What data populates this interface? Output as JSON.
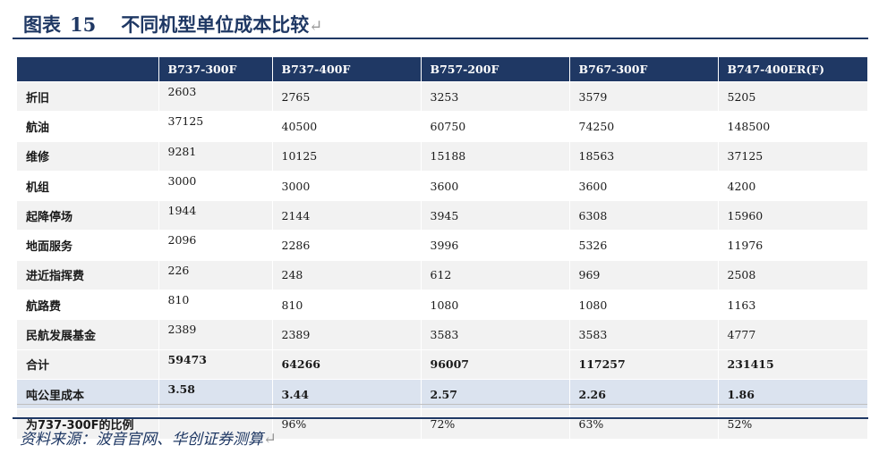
{
  "title": {
    "label": "图表",
    "number": "15",
    "text": "不同机型单位成本比较",
    "return_mark": "↵"
  },
  "table": {
    "columns": [
      "",
      "B737-300F",
      "B737-400F",
      "B757-200F",
      "B767-300F",
      "B747-400ER(F)"
    ],
    "rows": [
      {
        "label": "折旧",
        "values": [
          "2603",
          "2765",
          "3253",
          "3579",
          "5205"
        ]
      },
      {
        "label": "航油",
        "values": [
          "37125",
          "40500",
          "60750",
          "74250",
          "148500"
        ]
      },
      {
        "label": "维修",
        "values": [
          "9281",
          "10125",
          "15188",
          "18563",
          "37125"
        ]
      },
      {
        "label": "机组",
        "values": [
          "3000",
          "3000",
          "3600",
          "3600",
          "4200"
        ]
      },
      {
        "label": "起降停场",
        "values": [
          "1944",
          "2144",
          "3945",
          "6308",
          "15960"
        ]
      },
      {
        "label": "地面服务",
        "values": [
          "2096",
          "2286",
          "3996",
          "5326",
          "11976"
        ]
      },
      {
        "label": "进近指挥费",
        "values": [
          "226",
          "248",
          "612",
          "969",
          "2508"
        ]
      },
      {
        "label": "航路费",
        "values": [
          "810",
          "810",
          "1080",
          "1080",
          "1163"
        ]
      },
      {
        "label": "民航发展基金",
        "values": [
          "2389",
          "2389",
          "3583",
          "3583",
          "4777"
        ]
      },
      {
        "label": "合计",
        "values": [
          "59473",
          "64266",
          "96007",
          "117257",
          "231415"
        ]
      },
      {
        "label": "吨公里成本",
        "values": [
          "3.58",
          "3.44",
          "2.57",
          "2.26",
          "1.86"
        ]
      },
      {
        "label": "为737-300F的比例",
        "values": [
          "",
          "96%",
          "72%",
          "63%",
          "52%"
        ]
      }
    ]
  },
  "source": "资料来源：波音官网、华创证券测算",
  "source_return_mark": "↵"
}
